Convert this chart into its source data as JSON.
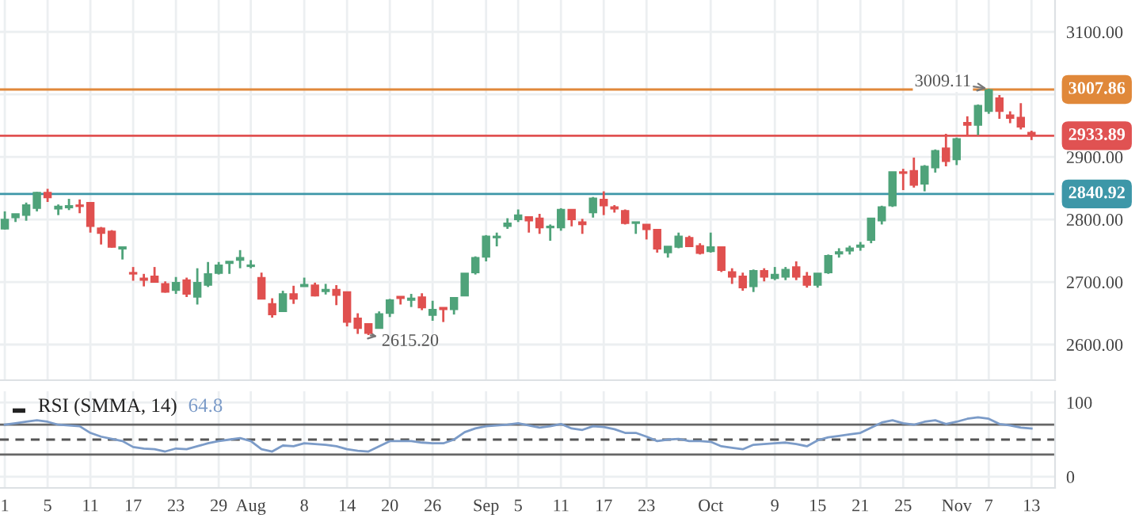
{
  "chart_data": [
    {
      "type": "candlestick",
      "categories": [
        null,
        null,
        null,
        null,
        null,
        null,
        null,
        null,
        null,
        null,
        null,
        null,
        null,
        null,
        null,
        null,
        null,
        null,
        null,
        null,
        null,
        null,
        null,
        null,
        null,
        null,
        null,
        null,
        null,
        null,
        null,
        null,
        null,
        null,
        null,
        null,
        null,
        null,
        null,
        null,
        null,
        null,
        null,
        null,
        null,
        null,
        null,
        null,
        null,
        null,
        null,
        null,
        null,
        null,
        null,
        null,
        null,
        null,
        null,
        null,
        null,
        null,
        null,
        null,
        null,
        null,
        null,
        null,
        null,
        null,
        null,
        null,
        null,
        null,
        null,
        null,
        null,
        null,
        null,
        null,
        null,
        null,
        null,
        null,
        null,
        null,
        null,
        null,
        null,
        null,
        null,
        null,
        null,
        null,
        null,
        null,
        null
      ],
      "ohlc": [
        [
          2785,
          2813,
          2784,
          2800
        ],
        [
          2803,
          2809,
          2796,
          2809
        ],
        [
          2807,
          2827,
          2798,
          2823
        ],
        [
          2818,
          2844,
          2813,
          2843
        ],
        [
          2843,
          2849,
          2828,
          2835
        ],
        [
          2817,
          2824,
          2807,
          2821
        ],
        [
          2819,
          2833,
          2815,
          2822
        ],
        [
          2823,
          2832,
          2810,
          2821
        ],
        [
          2827,
          2827,
          2779,
          2789
        ],
        [
          2786,
          2788,
          2760,
          2778
        ],
        [
          2781,
          2783,
          2755,
          2756
        ],
        [
          2753,
          2757,
          2736,
          2756
        ],
        [
          2715,
          2724,
          2702,
          2713
        ],
        [
          2706,
          2713,
          2693,
          2703
        ],
        [
          2709,
          2724,
          2699,
          2700
        ],
        [
          2697,
          2701,
          2683,
          2684
        ],
        [
          2687,
          2708,
          2681,
          2699
        ],
        [
          2703,
          2707,
          2676,
          2681
        ],
        [
          2676,
          2722,
          2664,
          2699
        ],
        [
          2695,
          2732,
          2692,
          2713
        ],
        [
          2714,
          2732,
          2712,
          2727
        ],
        [
          2730,
          2733,
          2713,
          2733
        ],
        [
          2735,
          2751,
          2722,
          2739
        ],
        [
          2725,
          2735,
          2722,
          2727
        ],
        [
          2707,
          2715,
          2673,
          2673
        ],
        [
          2665,
          2674,
          2643,
          2648
        ],
        [
          2653,
          2686,
          2652,
          2681
        ],
        [
          2681,
          2694,
          2665,
          2673
        ],
        [
          2693,
          2707,
          2693,
          2696
        ],
        [
          2695,
          2699,
          2677,
          2678
        ],
        [
          2685,
          2697,
          2680,
          2688
        ],
        [
          2688,
          2695,
          2663,
          2679
        ],
        [
          2684,
          2684,
          2629,
          2636
        ],
        [
          2642,
          2650,
          2617,
          2626
        ],
        [
          2633,
          2633,
          2615.2,
          2618
        ],
        [
          2626,
          2653,
          2626,
          2649
        ],
        [
          2650,
          2673,
          2644,
          2671
        ],
        [
          2677,
          2677,
          2664,
          2674
        ],
        [
          2671,
          2681,
          2660,
          2674
        ],
        [
          2676,
          2682,
          2655,
          2659
        ],
        [
          2647,
          2670,
          2638,
          2656
        ],
        [
          2659,
          2659,
          2636,
          2656
        ],
        [
          2656,
          2676,
          2648,
          2675
        ],
        [
          2678,
          2714,
          2678,
          2714
        ],
        [
          2715,
          2741,
          2712,
          2739
        ],
        [
          2740,
          2775,
          2733,
          2773
        ],
        [
          2771,
          2779,
          2757,
          2773
        ],
        [
          2789,
          2802,
          2785,
          2794
        ],
        [
          2800,
          2816,
          2796,
          2807
        ],
        [
          2804,
          2804,
          2779,
          2798
        ],
        [
          2802,
          2809,
          2777,
          2787
        ],
        [
          2787,
          2792,
          2766,
          2789
        ],
        [
          2787,
          2818,
          2782,
          2816
        ],
        [
          2816,
          2816,
          2789,
          2800
        ],
        [
          2796,
          2801,
          2777,
          2792
        ],
        [
          2811,
          2836,
          2803,
          2834
        ],
        [
          2832,
          2845,
          2807,
          2822
        ],
        [
          2820,
          2823,
          2811,
          2817
        ],
        [
          2814,
          2816,
          2792,
          2794
        ],
        [
          2794,
          2796,
          2777,
          2796
        ],
        [
          2792,
          2792,
          2768,
          2784
        ],
        [
          2784,
          2784,
          2747,
          2753
        ],
        [
          2747,
          2757,
          2739,
          2757
        ],
        [
          2756,
          2779,
          2754,
          2773
        ],
        [
          2771,
          2774,
          2756,
          2757
        ],
        [
          2758,
          2762,
          2744,
          2746
        ],
        [
          2749,
          2779,
          2747,
          2756
        ],
        [
          2756,
          2757,
          2716,
          2719
        ],
        [
          2716,
          2722,
          2697,
          2708
        ],
        [
          2709,
          2715,
          2686,
          2691
        ],
        [
          2693,
          2720,
          2684,
          2718
        ],
        [
          2718,
          2722,
          2701,
          2708
        ],
        [
          2706,
          2724,
          2703,
          2712
        ],
        [
          2708,
          2724,
          2703,
          2720
        ],
        [
          2724,
          2733,
          2703,
          2708
        ],
        [
          2709,
          2716,
          2691,
          2695
        ],
        [
          2695,
          2714,
          2691,
          2714
        ],
        [
          2715,
          2744,
          2713,
          2742
        ],
        [
          2745,
          2754,
          2739,
          2748
        ],
        [
          2750,
          2758,
          2744,
          2754
        ],
        [
          2756,
          2764,
          2750,
          2759
        ],
        [
          2767,
          2802,
          2762,
          2802
        ],
        [
          2798,
          2822,
          2792,
          2820
        ],
        [
          2822,
          2876,
          2820,
          2876
        ],
        [
          2876,
          2881,
          2847,
          2874
        ],
        [
          2878,
          2899,
          2851,
          2855
        ],
        [
          2857,
          2887,
          2845,
          2885
        ],
        [
          2883,
          2912,
          2875,
          2910
        ],
        [
          2914,
          2937,
          2885,
          2893
        ],
        [
          2896,
          2931,
          2887,
          2929
        ],
        [
          2955,
          2965,
          2935,
          2951
        ],
        [
          2951,
          2984,
          2935,
          2982
        ],
        [
          2973,
          3009.11,
          2969,
          3007
        ],
        [
          2994,
          2999,
          2961,
          2973
        ],
        [
          2967,
          2973,
          2954,
          2962
        ],
        [
          2963,
          2986,
          2944,
          2948
        ],
        [
          2939,
          2942,
          2927,
          2935
        ]
      ],
      "colors": [
        "#4fa37a",
        "#4fa37a",
        "#4fa37a",
        "#4fa37a",
        "#e0504f",
        "#4fa37a",
        "#4fa37a",
        "#e0504f",
        "#e0504f",
        "#e0504f",
        "#e0504f",
        "#4fa37a",
        "#e0504f",
        "#e0504f",
        "#e0504f",
        "#e0504f",
        "#4fa37a",
        "#e0504f",
        "#4fa37a",
        "#4fa37a",
        "#4fa37a",
        "#4fa37a",
        "#4fa37a",
        "#4fa37a",
        "#e0504f",
        "#e0504f",
        "#4fa37a",
        "#e0504f",
        "#4fa37a",
        "#e0504f",
        "#4fa37a",
        "#e0504f",
        "#e0504f",
        "#e0504f",
        "#e0504f",
        "#4fa37a",
        "#4fa37a",
        "#e0504f",
        "#4fa37a",
        "#e0504f",
        "#4fa37a",
        "#e0504f",
        "#4fa37a",
        "#4fa37a",
        "#4fa37a",
        "#4fa37a",
        "#4fa37a",
        "#4fa37a",
        "#4fa37a",
        "#e0504f",
        "#e0504f",
        "#4fa37a",
        "#4fa37a",
        "#e0504f",
        "#e0504f",
        "#4fa37a",
        "#e0504f",
        "#e0504f",
        "#e0504f",
        "#4fa37a",
        "#e0504f",
        "#e0504f",
        "#4fa37a",
        "#4fa37a",
        "#e0504f",
        "#e0504f",
        "#4fa37a",
        "#e0504f",
        "#e0504f",
        "#e0504f",
        "#4fa37a",
        "#e0504f",
        "#4fa37a",
        "#4fa37a",
        "#e0504f",
        "#e0504f",
        "#4fa37a",
        "#4fa37a",
        "#4fa37a",
        "#4fa37a",
        "#4fa37a",
        "#4fa37a",
        "#4fa37a",
        "#4fa37a",
        "#e0504f",
        "#e0504f",
        "#4fa37a",
        "#4fa37a",
        "#e0504f",
        "#4fa37a",
        "#e0504f",
        "#4fa37a",
        "#4fa37a",
        "#e0504f",
        "#e0504f",
        "#e0504f",
        "#e0504f"
      ],
      "ylim": [
        2543,
        3151
      ],
      "yticks": [
        {
          "value": 2600,
          "label": "2600.00"
        },
        {
          "value": 2700,
          "label": "2700.00"
        },
        {
          "value": 2800,
          "label": "2800.00"
        },
        {
          "value": 2900,
          "label": "2900.00"
        },
        {
          "value": 3000,
          "label": null
        },
        {
          "value": 3100,
          "label": "3100.00"
        }
      ],
      "ref_lines": [
        {
          "axis": "y",
          "value": 3007.86,
          "label": "3007.86",
          "color": "#e0883a"
        },
        {
          "axis": "y",
          "value": 2933.89,
          "label": "2933.89",
          "color": "#e05252"
        },
        {
          "axis": "y",
          "value": 2840.92,
          "label": "2840.92",
          "color": "#3d97a8"
        }
      ],
      "annotations": [
        "2615.20",
        "3009.11"
      ],
      "grid": true,
      "tick_labels": "y"
    },
    {
      "type": "line",
      "title": "RSI (SMMA, 14)",
      "categories": [
        "1",
        null,
        null,
        null,
        "5",
        null,
        null,
        null,
        "11",
        null,
        null,
        null,
        "17",
        null,
        null,
        null,
        "23",
        null,
        null,
        null,
        "29",
        null,
        null,
        "Aug",
        null,
        null,
        null,
        null,
        "8",
        null,
        null,
        null,
        "14",
        null,
        null,
        null,
        "20",
        null,
        null,
        null,
        "26",
        null,
        null,
        null,
        null,
        "Sep",
        null,
        null,
        "5",
        null,
        null,
        null,
        "11",
        null,
        null,
        null,
        "17",
        null,
        null,
        null,
        "23",
        null,
        null,
        null,
        null,
        null,
        "Oct",
        null,
        null,
        null,
        null,
        null,
        "9",
        null,
        null,
        null,
        "15",
        null,
        null,
        null,
        "21",
        null,
        null,
        null,
        "25",
        null,
        null,
        null,
        null,
        "Nov",
        null,
        null,
        "7",
        null,
        null,
        null,
        "13"
      ],
      "series": [
        {
          "color": "#7b9bc8",
          "values": [
            70,
            72,
            74,
            76,
            74,
            70,
            69,
            68,
            59,
            54,
            51,
            48,
            40,
            38,
            37,
            34,
            38,
            37,
            41,
            45,
            48,
            50,
            52,
            48,
            37,
            34,
            42,
            41,
            45,
            44,
            43,
            41,
            37,
            35,
            34,
            41,
            48,
            48,
            48,
            46,
            45,
            45,
            50,
            60,
            65,
            68,
            69,
            70,
            72,
            69,
            66,
            68,
            71,
            65,
            63,
            68,
            67,
            64,
            59,
            59,
            54,
            48,
            50,
            51,
            48,
            48,
            47,
            41,
            39,
            37,
            43,
            44,
            45,
            46,
            44,
            41,
            49,
            53,
            55,
            57,
            59,
            66,
            73,
            76,
            72,
            70,
            74,
            76,
            71,
            74,
            78,
            80,
            78,
            71,
            69,
            66,
            64.8
          ]
        }
      ],
      "ylim": [
        -15,
        115
      ],
      "yticks": [
        0,
        100
      ],
      "ref_lines": [
        {
          "axis": "y",
          "value": 70,
          "color": "#666666",
          "line_style": "solid"
        },
        {
          "axis": "y",
          "value": 50,
          "color": "#555555",
          "line_style": "dashed"
        },
        {
          "axis": "y",
          "value": 30,
          "color": "#666666",
          "line_style": "solid"
        }
      ],
      "annotations": [
        "64.8"
      ],
      "grid": true
    }
  ]
}
